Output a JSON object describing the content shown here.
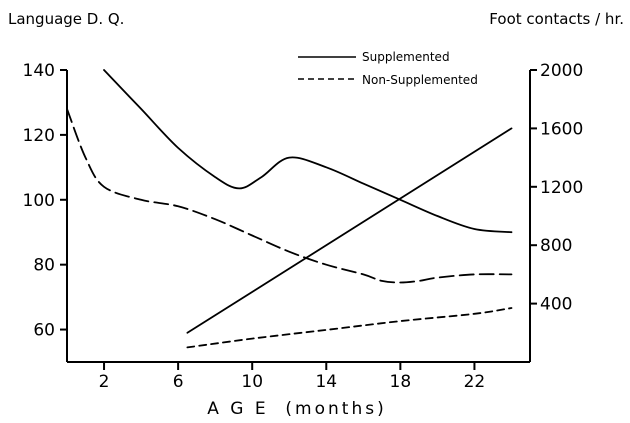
{
  "chart_data": {
    "type": "line",
    "xlabel": "A G E  (months)",
    "ylabel_left": "Language  D. Q.",
    "ylabel_right": "Foot contacts / hr.",
    "xlim": [
      0,
      25
    ],
    "ylim_left": [
      50,
      140
    ],
    "ylim_right": [
      0,
      2000
    ],
    "x_ticks": [
      2,
      6,
      10,
      14,
      18,
      22
    ],
    "y_ticks_left": [
      60,
      80,
      100,
      120,
      140
    ],
    "y_ticks_right": [
      400,
      800,
      1200,
      1600,
      2000
    ],
    "legend": {
      "placement": "top-center",
      "entries": [
        {
          "label": "Supplemented",
          "style": "solid"
        },
        {
          "label": "Non-Supplemented",
          "style": "dashed"
        }
      ]
    },
    "grid": false,
    "series": [
      {
        "style": "solid",
        "axis": "left",
        "x": [
          2,
          4,
          6,
          8,
          9.3,
          10.5,
          12,
          14,
          16,
          18,
          20,
          22,
          24
        ],
        "values": [
          140,
          128,
          116,
          107,
          103.5,
          107,
          113,
          110,
          105,
          100,
          95,
          91,
          90
        ]
      },
      {
        "style": "dashed",
        "axis": "left",
        "x": [
          0,
          1,
          2,
          4,
          6,
          8,
          10,
          12,
          14,
          16,
          17,
          18,
          19,
          20,
          22,
          24
        ],
        "values": [
          128,
          113,
          104,
          100,
          98,
          94,
          89,
          84,
          80,
          77,
          75,
          74.5,
          75,
          76,
          77,
          77
        ]
      },
      {
        "style": "solid",
        "axis": "right",
        "x": [
          6.5,
          24
        ],
        "values": [
          200,
          1600
        ]
      },
      {
        "style": "dashed",
        "axis": "right",
        "x": [
          6.5,
          10,
          14,
          18,
          22,
          24
        ],
        "values": [
          100,
          160,
          220,
          280,
          330,
          370
        ]
      }
    ]
  }
}
